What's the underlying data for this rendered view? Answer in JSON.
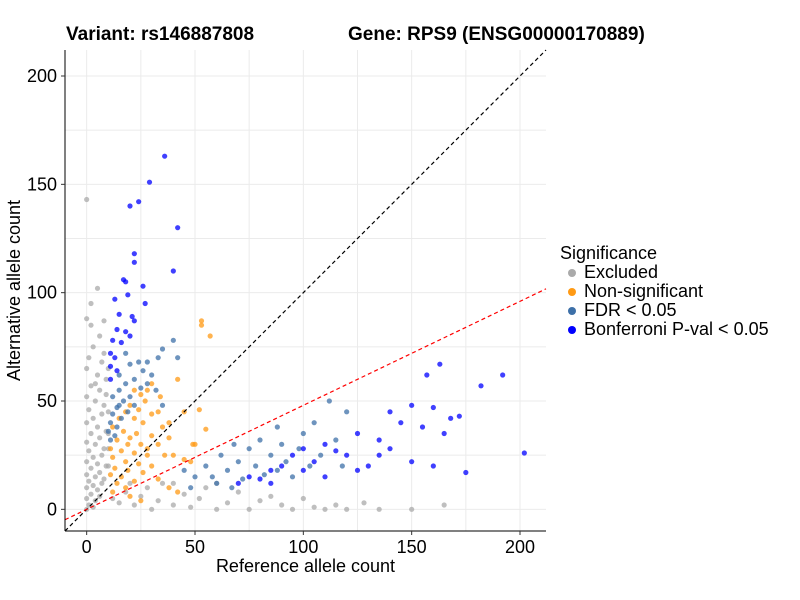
{
  "chart_data": {
    "type": "scatter",
    "title_left": "Variant: rs146887808",
    "title_right": "Gene: RPS9 (ENSG00000170889)",
    "xlabel": "Reference allele count",
    "ylabel": "Alternative allele count",
    "xlim": [
      -10,
      212
    ],
    "ylim": [
      -10,
      212
    ],
    "xticks": [
      "0",
      "50",
      "100",
      "150",
      "200"
    ],
    "yticks": [
      "0",
      "50",
      "100",
      "150",
      "200"
    ],
    "xtick_values": [
      0,
      50,
      100,
      150,
      200
    ],
    "ytick_values": [
      0,
      50,
      100,
      150,
      200
    ],
    "grid": true,
    "reference_lines": [
      {
        "name": "identity",
        "slope": 1,
        "intercept": 0,
        "color": "#000000"
      },
      {
        "name": "expected-ratio",
        "slope": 0.48,
        "intercept": 0,
        "color": "#ff0000"
      }
    ],
    "legend": {
      "title": "Significance",
      "placement": "right",
      "entries": [
        {
          "label": "Excluded",
          "color": "#aaaaaa"
        },
        {
          "label": "Non-significant",
          "color": "#ff9a14"
        },
        {
          "label": "FDR < 0.05",
          "color": "#3d70a8"
        },
        {
          "label": "Bonferroni P-val < 0.05",
          "color": "#0000ff"
        }
      ]
    },
    "series": [
      {
        "name": "Excluded",
        "color": "#aaaaaa",
        "points": [
          [
            0,
            143
          ],
          [
            5,
            102
          ],
          [
            8,
            87
          ],
          [
            6,
            80
          ],
          [
            2,
            95
          ],
          [
            0,
            88
          ],
          [
            3,
            75
          ],
          [
            8,
            72
          ],
          [
            1,
            70
          ],
          [
            0,
            65
          ],
          [
            5,
            62
          ],
          [
            9,
            60
          ],
          [
            2,
            57
          ],
          [
            6,
            55
          ],
          [
            0,
            52
          ],
          [
            4,
            50
          ],
          [
            8,
            48
          ],
          [
            1,
            46
          ],
          [
            7,
            44
          ],
          [
            3,
            42
          ],
          [
            0,
            40
          ],
          [
            5,
            38
          ],
          [
            9,
            36
          ],
          [
            2,
            35
          ],
          [
            6,
            33
          ],
          [
            0,
            31
          ],
          [
            4,
            30
          ],
          [
            8,
            28
          ],
          [
            1,
            27
          ],
          [
            7,
            25
          ],
          [
            3,
            24
          ],
          [
            0,
            22
          ],
          [
            5,
            21
          ],
          [
            9,
            20
          ],
          [
            2,
            19
          ],
          [
            6,
            17
          ],
          [
            0,
            16
          ],
          [
            4,
            15
          ],
          [
            8,
            14
          ],
          [
            1,
            13
          ],
          [
            7,
            12
          ],
          [
            3,
            11
          ],
          [
            0,
            10
          ],
          [
            5,
            9
          ],
          [
            2,
            7
          ],
          [
            6,
            6
          ],
          [
            0,
            5
          ],
          [
            4,
            4
          ],
          [
            1,
            2
          ],
          [
            3,
            1
          ],
          [
            0,
            0
          ],
          [
            2,
            85
          ],
          [
            7,
            68
          ],
          [
            4,
            58
          ],
          [
            9,
            53
          ],
          [
            10,
            65
          ],
          [
            10,
            45
          ],
          [
            10,
            35
          ],
          [
            10,
            28
          ],
          [
            10,
            20
          ],
          [
            12,
            5
          ],
          [
            15,
            3
          ],
          [
            18,
            8
          ],
          [
            22,
            2
          ],
          [
            25,
            6
          ],
          [
            28,
            10
          ],
          [
            30,
            0
          ],
          [
            33,
            4
          ],
          [
            35,
            12
          ],
          [
            40,
            2
          ],
          [
            45,
            7
          ],
          [
            48,
            1
          ],
          [
            52,
            5
          ],
          [
            55,
            10
          ],
          [
            60,
            0
          ],
          [
            65,
            3
          ],
          [
            70,
            8
          ],
          [
            75,
            0
          ],
          [
            80,
            4
          ],
          [
            85,
            6
          ],
          [
            90,
            2
          ],
          [
            95,
            0
          ],
          [
            100,
            5
          ],
          [
            105,
            1
          ],
          [
            110,
            0
          ],
          [
            115,
            2
          ],
          [
            120,
            0
          ],
          [
            128,
            3
          ],
          [
            135,
            0
          ],
          [
            150,
            0
          ],
          [
            165,
            2
          ],
          [
            60,
            12
          ],
          [
            40,
            12
          ],
          [
            20,
            12
          ]
        ]
      },
      {
        "name": "Non-significant",
        "color": "#ff9a14",
        "points": [
          [
            53,
            87
          ],
          [
            53,
            85
          ],
          [
            57,
            80
          ],
          [
            42,
            60
          ],
          [
            45,
            45
          ],
          [
            33,
            45
          ],
          [
            38,
            40
          ],
          [
            52,
            46
          ],
          [
            55,
            37
          ],
          [
            50,
            30
          ],
          [
            49,
            30
          ],
          [
            45,
            23
          ],
          [
            48,
            22
          ],
          [
            40,
            25
          ],
          [
            30,
            58
          ],
          [
            28,
            55
          ],
          [
            25,
            53
          ],
          [
            22,
            55
          ],
          [
            34,
            52
          ],
          [
            27,
            50
          ],
          [
            20,
            48
          ],
          [
            24,
            46
          ],
          [
            30,
            44
          ],
          [
            18,
            45
          ],
          [
            15,
            42
          ],
          [
            22,
            42
          ],
          [
            26,
            40
          ],
          [
            35,
            38
          ],
          [
            12,
            38
          ],
          [
            17,
            36
          ],
          [
            23,
            35
          ],
          [
            30,
            34
          ],
          [
            38,
            33
          ],
          [
            14,
            32
          ],
          [
            19,
            30
          ],
          [
            25,
            30
          ],
          [
            33,
            30
          ],
          [
            11,
            28
          ],
          [
            16,
            27
          ],
          [
            22,
            26
          ],
          [
            28,
            25
          ],
          [
            36,
            25
          ],
          [
            12,
            24
          ],
          [
            18,
            22
          ],
          [
            24,
            21
          ],
          [
            30,
            20
          ],
          [
            13,
            19
          ],
          [
            19,
            18
          ],
          [
            26,
            17
          ],
          [
            11,
            16
          ],
          [
            16,
            15
          ],
          [
            22,
            13
          ],
          [
            14,
            12
          ],
          [
            18,
            10
          ],
          [
            12,
            8
          ],
          [
            20,
            6
          ],
          [
            25,
            4
          ],
          [
            42,
            8
          ],
          [
            38,
            10
          ],
          [
            33,
            14
          ],
          [
            20,
            33
          ],
          [
            28,
            28
          ]
        ]
      },
      {
        "name": "FDR < 0.05",
        "color": "#3d70a8",
        "points": [
          [
            40,
            78
          ],
          [
            35,
            74
          ],
          [
            33,
            70
          ],
          [
            24,
            68
          ],
          [
            28,
            68
          ],
          [
            20,
            67
          ],
          [
            30,
            62
          ],
          [
            22,
            60
          ],
          [
            18,
            58
          ],
          [
            25,
            56
          ],
          [
            15,
            55
          ],
          [
            20,
            52
          ],
          [
            12,
            52
          ],
          [
            17,
            50
          ],
          [
            22,
            48
          ],
          [
            14,
            47
          ],
          [
            19,
            45
          ],
          [
            12,
            44
          ],
          [
            16,
            42
          ],
          [
            11,
            40
          ],
          [
            14,
            38
          ],
          [
            10,
            36
          ],
          [
            13,
            34
          ],
          [
            11,
            32
          ],
          [
            28,
            58
          ],
          [
            32,
            55
          ],
          [
            15,
            62
          ],
          [
            26,
            64
          ],
          [
            18,
            72
          ],
          [
            35,
            48
          ],
          [
            42,
            70
          ],
          [
            15,
            48
          ],
          [
            45,
            18
          ],
          [
            50,
            15
          ],
          [
            55,
            20
          ],
          [
            60,
            12
          ],
          [
            62,
            25
          ],
          [
            65,
            18
          ],
          [
            68,
            30
          ],
          [
            70,
            22
          ],
          [
            72,
            14
          ],
          [
            75,
            28
          ],
          [
            78,
            20
          ],
          [
            80,
            32
          ],
          [
            82,
            16
          ],
          [
            85,
            25
          ],
          [
            88,
            18
          ],
          [
            90,
            30
          ],
          [
            92,
            22
          ],
          [
            95,
            15
          ],
          [
            98,
            28
          ],
          [
            100,
            35
          ],
          [
            103,
            20
          ],
          [
            105,
            40
          ],
          [
            108,
            25
          ],
          [
            112,
            50
          ],
          [
            115,
            32
          ],
          [
            118,
            20
          ],
          [
            120,
            45
          ],
          [
            58,
            15
          ],
          [
            48,
            10
          ],
          [
            67,
            10
          ],
          [
            88,
            38
          ]
        ]
      },
      {
        "name": "Bonferroni P-val < 0.05",
        "color": "#0000ff",
        "points": [
          [
            36,
            163
          ],
          [
            29,
            151
          ],
          [
            24,
            142
          ],
          [
            20,
            140
          ],
          [
            42,
            130
          ],
          [
            22,
            118
          ],
          [
            22,
            114
          ],
          [
            40,
            110
          ],
          [
            17,
            106
          ],
          [
            18,
            105
          ],
          [
            26,
            103
          ],
          [
            19,
            99
          ],
          [
            13,
            97
          ],
          [
            27,
            95
          ],
          [
            15,
            90
          ],
          [
            21,
            89
          ],
          [
            22,
            87
          ],
          [
            14,
            83
          ],
          [
            18,
            82
          ],
          [
            20,
            80
          ],
          [
            12,
            78
          ],
          [
            16,
            77
          ],
          [
            11,
            72
          ],
          [
            13,
            70
          ],
          [
            11,
            66
          ],
          [
            14,
            64
          ],
          [
            11,
            60
          ],
          [
            70,
            12
          ],
          [
            75,
            15
          ],
          [
            80,
            14
          ],
          [
            85,
            18
          ],
          [
            90,
            20
          ],
          [
            95,
            25
          ],
          [
            100,
            18
          ],
          [
            105,
            22
          ],
          [
            110,
            30
          ],
          [
            115,
            27
          ],
          [
            120,
            25
          ],
          [
            125,
            35
          ],
          [
            130,
            20
          ],
          [
            135,
            32
          ],
          [
            140,
            28
          ],
          [
            145,
            40
          ],
          [
            150,
            48
          ],
          [
            155,
            38
          ],
          [
            160,
            47
          ],
          [
            163,
            67
          ],
          [
            157,
            62
          ],
          [
            140,
            45
          ],
          [
            168,
            42
          ],
          [
            172,
            43
          ],
          [
            182,
            57
          ],
          [
            192,
            62
          ],
          [
            202,
            26
          ],
          [
            175,
            17
          ],
          [
            160,
            20
          ],
          [
            150,
            22
          ],
          [
            165,
            35
          ],
          [
            100,
            28
          ],
          [
            85,
            12
          ],
          [
            110,
            15
          ],
          [
            125,
            18
          ],
          [
            135,
            25
          ]
        ]
      }
    ]
  }
}
